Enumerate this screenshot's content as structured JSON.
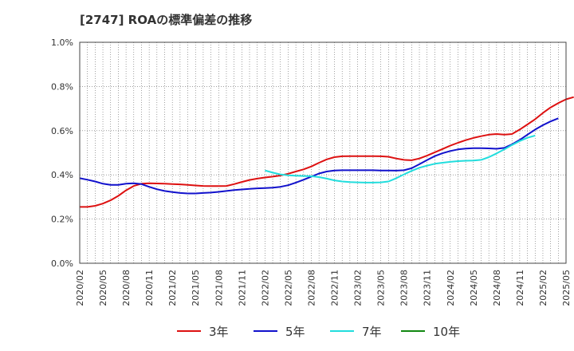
{
  "chart_data": {
    "type": "line",
    "title": "[2747]  ROAの標準偏差の推移",
    "ylim": [
      0.0,
      1.0
    ],
    "ytick_labels": [
      "0.0%",
      "0.2%",
      "0.4%",
      "0.6%",
      "0.8%",
      "1.0%"
    ],
    "xtick_labels": [
      "2020/02",
      "2020/05",
      "2020/08",
      "2020/11",
      "2021/02",
      "2021/05",
      "2021/08",
      "2021/11",
      "2022/02",
      "2022/05",
      "2022/08",
      "2022/11",
      "2023/02",
      "2023/05",
      "2023/08",
      "2023/11",
      "2024/02",
      "2024/05",
      "2024/08",
      "2024/11",
      "2025/02",
      "2025/05"
    ],
    "grid": true,
    "legend_position": "bottom",
    "series": [
      {
        "name": "3年",
        "color": "#dd1111",
        "start": "2020/02",
        "values": [
          0.255,
          0.255,
          0.26,
          0.27,
          0.285,
          0.305,
          0.33,
          0.35,
          0.36,
          0.362,
          0.361,
          0.36,
          0.358,
          0.357,
          0.355,
          0.352,
          0.35,
          0.349,
          0.349,
          0.35,
          0.358,
          0.368,
          0.377,
          0.383,
          0.388,
          0.392,
          0.397,
          0.405,
          0.415,
          0.425,
          0.438,
          0.455,
          0.47,
          0.48,
          0.484,
          0.485,
          0.485,
          0.485,
          0.485,
          0.484,
          0.482,
          0.474,
          0.468,
          0.466,
          0.474,
          0.487,
          0.502,
          0.517,
          0.532,
          0.545,
          0.557,
          0.567,
          0.575,
          0.582,
          0.585,
          0.582,
          0.585,
          0.605,
          0.628,
          0.652,
          0.68,
          0.705,
          0.725,
          0.742,
          0.752
        ]
      },
      {
        "name": "5年",
        "color": "#1111cc",
        "start": "2020/02",
        "values": [
          0.385,
          0.378,
          0.37,
          0.36,
          0.355,
          0.355,
          0.36,
          0.362,
          0.358,
          0.346,
          0.335,
          0.327,
          0.322,
          0.318,
          0.316,
          0.316,
          0.318,
          0.32,
          0.323,
          0.327,
          0.331,
          0.334,
          0.337,
          0.339,
          0.34,
          0.342,
          0.346,
          0.353,
          0.365,
          0.378,
          0.392,
          0.406,
          0.415,
          0.42,
          0.421,
          0.421,
          0.421,
          0.421,
          0.421,
          0.42,
          0.42,
          0.419,
          0.421,
          0.43,
          0.448,
          0.467,
          0.485,
          0.498,
          0.508,
          0.515,
          0.519,
          0.521,
          0.521,
          0.52,
          0.518,
          0.522,
          0.538,
          0.558,
          0.582,
          0.605,
          0.625,
          0.642,
          0.656
        ]
      },
      {
        "name": "7年",
        "color": "#22dddd",
        "start": "2022/02",
        "values": [
          0.42,
          0.41,
          0.402,
          0.398,
          0.396,
          0.395,
          0.394,
          0.39,
          0.383,
          0.375,
          0.37,
          0.367,
          0.366,
          0.365,
          0.365,
          0.366,
          0.37,
          0.385,
          0.402,
          0.418,
          0.432,
          0.442,
          0.45,
          0.455,
          0.459,
          0.462,
          0.464,
          0.465,
          0.468,
          0.48,
          0.497,
          0.515,
          0.535,
          0.553,
          0.568,
          0.578
        ]
      },
      {
        "name": "10年",
        "color": "#118811",
        "start": "2020/02",
        "values": []
      }
    ]
  }
}
